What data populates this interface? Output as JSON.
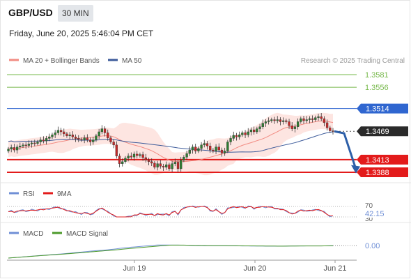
{
  "header": {
    "pair": "GBP/USD",
    "timeframe": "30 MIN",
    "datetime": "Friday, June 20, 2025 5:46:04 PM CET"
  },
  "legend": {
    "ma20": "MA 20 + Bollinger Bands",
    "ma50": "MA 50",
    "research": "Research © 2025 Trading Central",
    "rsi": "RSI",
    "ma9": "9MA",
    "macd": "MACD",
    "macd_signal": "MACD Signal"
  },
  "colors": {
    "up": "#2e7d32",
    "down": "#c62828",
    "ma20": "#f28b82",
    "ma50": "#3c5a9a",
    "bb_fill": "#fde0dc",
    "resistance": "#76b84a",
    "pivot": "#2f66d0",
    "support": "#e31b1b",
    "arrow": "#2d5fa8",
    "rsi": "#6f8fd6",
    "macd_signal": "#4c9a2a"
  },
  "chart_data": {
    "type": "candlestick",
    "symbol": "GBP/USD",
    "interval": "30 MIN",
    "x_ticks": [
      "Jun 19",
      "Jun 20",
      "Jun 21"
    ],
    "ylim": [
      1.337,
      1.36
    ],
    "levels": [
      {
        "value": 1.3581,
        "label": "1.3581",
        "kind": "resistance"
      },
      {
        "value": 1.3556,
        "label": "1.3556",
        "kind": "resistance"
      },
      {
        "value": 1.3514,
        "label": "1.3514",
        "kind": "pivot"
      },
      {
        "value": 1.3469,
        "label": "1.3469",
        "kind": "last"
      },
      {
        "value": 1.3413,
        "label": "1.3413",
        "kind": "support"
      },
      {
        "value": 1.3388,
        "label": "1.3388",
        "kind": "support"
      }
    ],
    "candles_close": [
      1.3434,
      1.3437,
      1.3432,
      1.3438,
      1.344,
      1.3442,
      1.3441,
      1.3444,
      1.3446,
      1.3445,
      1.3448,
      1.3452,
      1.345,
      1.3455,
      1.3458,
      1.3462,
      1.3466,
      1.3471,
      1.3468,
      1.3464,
      1.346,
      1.3462,
      1.3458,
      1.3455,
      1.3453,
      1.3452,
      1.3456,
      1.3452,
      1.3448,
      1.3452,
      1.346,
      1.3468,
      1.3474,
      1.3466,
      1.3456,
      1.3448,
      1.3442,
      1.342,
      1.3405,
      1.3409,
      1.3416,
      1.342,
      1.3418,
      1.3424,
      1.3421,
      1.3423,
      1.3417,
      1.3412,
      1.3409,
      1.3406,
      1.3398,
      1.3405,
      1.34,
      1.3398,
      1.3403,
      1.3395,
      1.3405,
      1.3408,
      1.3395,
      1.3412,
      1.3418,
      1.3425,
      1.3432,
      1.3438,
      1.343,
      1.3435,
      1.3442,
      1.3445,
      1.344,
      1.3432,
      1.343,
      1.3438,
      1.3432,
      1.3426,
      1.343,
      1.3448,
      1.3455,
      1.3461,
      1.3458,
      1.3462,
      1.3466,
      1.3462,
      1.3468,
      1.3472,
      1.3468,
      1.3474,
      1.3478,
      1.3485,
      1.3488,
      1.349,
      1.3492,
      1.349,
      1.3492,
      1.3488,
      1.349,
      1.3488,
      1.348,
      1.3474,
      1.3478,
      1.3488,
      1.3494,
      1.349,
      1.3492,
      1.3494,
      1.3492,
      1.3496,
      1.3498,
      1.3494,
      1.3486,
      1.3476,
      1.347,
      1.3469
    ],
    "forecast_path": [
      1.3469,
      1.3465,
      1.3394
    ],
    "rsi_panel": {
      "label": "RSI",
      "ma_label": "9MA",
      "current": 42.15,
      "levels": [
        70,
        30
      ]
    },
    "macd_panel": {
      "label": "MACD",
      "signal_label": "MACD Signal",
      "zero": 0.0
    },
    "labels": {
      "rsi_70": "70",
      "rsi_30": "30",
      "rsi_val": "42.15",
      "macd_zero": "0.00"
    }
  }
}
